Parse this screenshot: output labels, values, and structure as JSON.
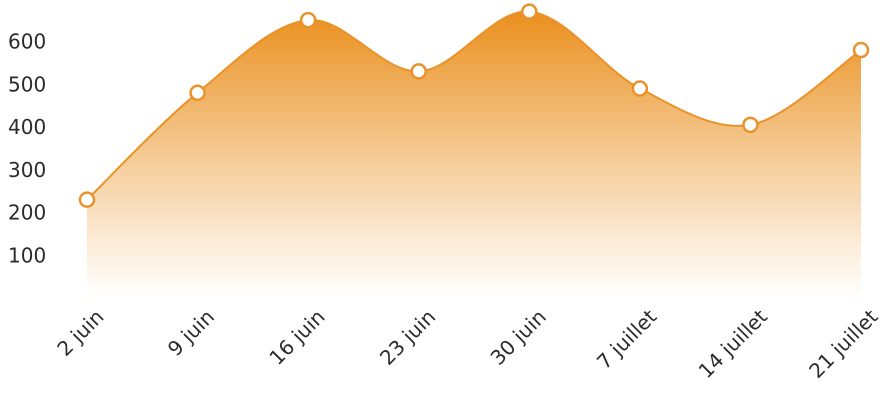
{
  "chart_data": {
    "type": "area",
    "categories": [
      "2 juin",
      "9 juin",
      "16 juin",
      "23 juin",
      "30 juin",
      "7 juillet",
      "14 juillet",
      "21 juillet"
    ],
    "series": [
      {
        "values": [
          230,
          480,
          650,
          530,
          670,
          490,
          405,
          580
        ]
      }
    ],
    "yticks": [
      100,
      200,
      300,
      400,
      500,
      600
    ],
    "ylim": [
      0,
      700
    ],
    "title": "",
    "xlabel": "",
    "ylabel": "",
    "grid": false,
    "legend": "none",
    "colors": {
      "line": "#e9922a",
      "fill_top": "#ea8f1c",
      "fill_bottom": "#ffffff",
      "marker_fill": "#ffffff",
      "text": "#2b2b2b"
    }
  }
}
